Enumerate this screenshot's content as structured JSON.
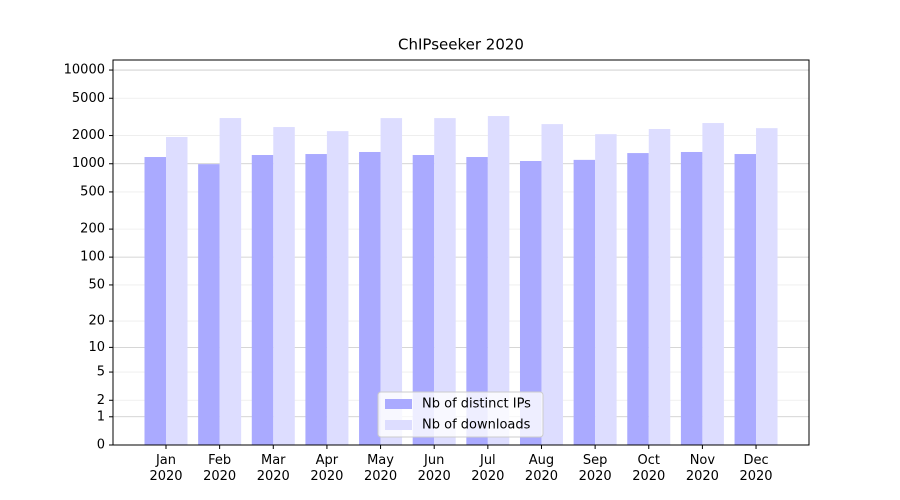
{
  "chart_data": {
    "type": "bar",
    "title": "ChIPseeker 2020",
    "yscale": "log1p",
    "grid": true,
    "legend": "lower center",
    "categories": [
      "Jan\n2020",
      "Feb\n2020",
      "Mar\n2020",
      "Apr\n2020",
      "May\n2020",
      "Jun\n2020",
      "Jul\n2020",
      "Aug\n2020",
      "Sep\n2020",
      "Oct\n2020",
      "Nov\n2020",
      "Dec\n2020"
    ],
    "series": [
      {
        "name": "Nb of distinct IPs",
        "color": "#aaaaff",
        "values": [
          1180,
          990,
          1240,
          1270,
          1335,
          1240,
          1180,
          1070,
          1100,
          1300,
          1335,
          1270
        ]
      },
      {
        "name": "Nb of downloads",
        "color": "#ddddff",
        "values": [
          1930,
          3075,
          2465,
          2230,
          3070,
          3070,
          3230,
          2650,
          2070,
          2350,
          2720,
          2400
        ]
      }
    ],
    "ylim": [
      0,
      12800
    ],
    "yticks": [
      0,
      1,
      2,
      5,
      10,
      20,
      50,
      100,
      200,
      500,
      1000,
      2000,
      5000,
      10000
    ]
  }
}
